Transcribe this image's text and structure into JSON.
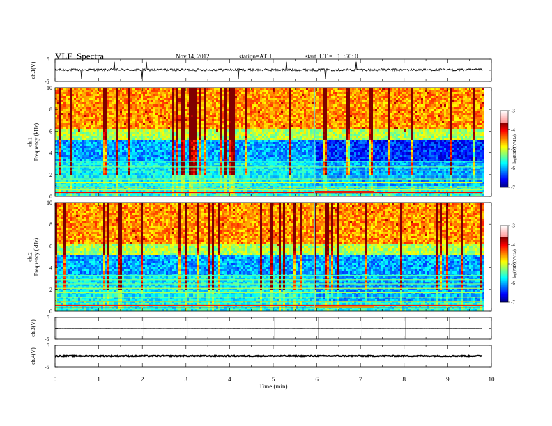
{
  "header": {
    "title": "VLF  Spectra",
    "date": "Nov.14, 2012",
    "station": "station=ATH",
    "start": "start  UT =   1  :50: 0"
  },
  "chart_data": [
    {
      "type": "line",
      "panel": "ch1-waveform",
      "ylabel": "ch.1(V)",
      "ylim": [
        -5,
        5
      ],
      "yticks": [
        "5",
        "-5"
      ],
      "x_range_min": [
        0,
        9.8
      ],
      "approx_level": 0.2,
      "spikes_min": [
        0.6,
        1.35,
        2.0,
        2.1,
        4.2,
        5.3,
        6.2,
        6.9
      ]
    },
    {
      "type": "heatmap",
      "panel": "ch1-spectrogram",
      "ylabel": "ch.1\nFrequency  (kHz)",
      "ylim": [
        0,
        10
      ],
      "yticks": [
        "0",
        "2",
        "4",
        "6",
        "8",
        "10"
      ],
      "x_range_min": [
        0,
        9.8
      ],
      "colorbar": {
        "label": "log(PSD)(V²/Hz)",
        "ticks": [
          "-3",
          "-4",
          "-5",
          "-6",
          "-7"
        ],
        "range": [
          -7,
          -3
        ]
      },
      "notable_change_min": 5.95
    },
    {
      "type": "heatmap",
      "panel": "ch2-spectrogram",
      "ylabel": "ch.2\nFrequency  (kHz)",
      "ylim": [
        0,
        10
      ],
      "yticks": [
        "0",
        "2",
        "4",
        "6",
        "8",
        "10"
      ],
      "x_range_min": [
        0,
        9.8
      ],
      "colorbar": {
        "label": "log(PSD)(V²/Hz)",
        "ticks": [
          "-3",
          "-4",
          "-5",
          "-6",
          "-7"
        ],
        "range": [
          -7,
          -3
        ]
      },
      "notable_change_min": 5.95
    },
    {
      "type": "line",
      "panel": "ch3-waveform",
      "ylabel": "ch.3(V)",
      "ylim": [
        -5,
        5
      ],
      "yticks": [
        "5",
        "-5"
      ],
      "x_range_min": [
        0,
        9.8
      ],
      "approx_level": 0
    },
    {
      "type": "line",
      "panel": "ch4-waveform",
      "ylabel": "ch.4(V)",
      "ylim": [
        -5,
        5
      ],
      "yticks": [
        "5",
        "-5"
      ],
      "x_range_min": [
        0,
        9.8
      ],
      "approx_level": 0
    }
  ],
  "x_axis": {
    "label": "Time  (min)",
    "xlim": [
      0,
      10
    ],
    "ticks": [
      "0",
      "1",
      "2",
      "3",
      "4",
      "5",
      "6",
      "7",
      "8",
      "9",
      "10"
    ]
  }
}
